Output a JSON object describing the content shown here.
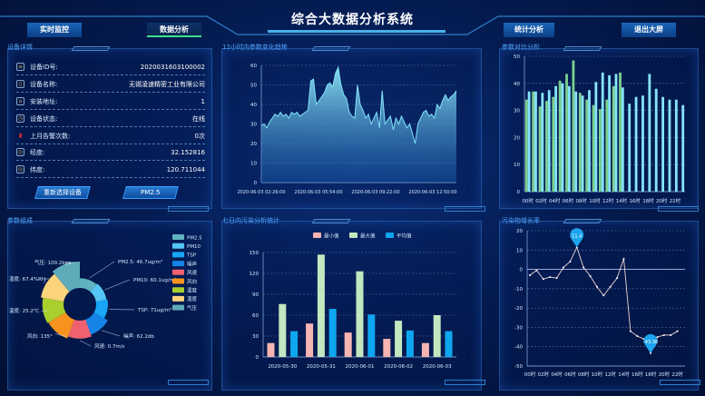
{
  "header": {
    "title": "综合大数据分析系统",
    "nav": [
      {
        "label": "实时监控"
      },
      {
        "label": "数据分析",
        "active": true
      },
      {
        "label": "统计分析"
      },
      {
        "label": "退出大屏"
      }
    ]
  },
  "device": {
    "title": "设备详情",
    "rows": [
      {
        "icon": "id-card-icon",
        "label": "设备ID号:",
        "value": "2020031603100002"
      },
      {
        "icon": "document-icon",
        "label": "设备名称:",
        "value": "无锡凌速精密工业有限公司"
      },
      {
        "icon": "home-icon",
        "label": "安装地址:",
        "value": "1"
      },
      {
        "icon": "clock-icon",
        "label": "设备状态:",
        "value": "在线"
      },
      {
        "icon": "alarm-icon",
        "label": "上月告警次数:",
        "value": "0次"
      },
      {
        "icon": "globe-icon",
        "label": "经度:",
        "value": "32.152816"
      },
      {
        "icon": "globe-icon",
        "label": "纬度:",
        "value": "120.711044"
      }
    ],
    "reselect_label": "重新选择设备",
    "param_label": "PM2.5"
  },
  "panels": {
    "trend": "12小时内参数变化趋势",
    "compare": "参数对比分析",
    "composition": "参数组成",
    "weekly": "七日内污染分析统计",
    "growth": "污染物增长率"
  },
  "chart_data": [
    {
      "id": "trend",
      "type": "area",
      "title": "12小时内参数变化趋势",
      "ylim": [
        0,
        60
      ],
      "yticks": [
        0,
        10,
        20,
        30,
        40,
        50,
        60
      ],
      "grid": true,
      "xtick_labels": [
        "2020-06-03 02:26:00",
        "2020-06-03 05:54:00",
        "2020-06-03 09:22:00",
        "2020-06-03 12:50:00"
      ],
      "x_interval_minutes": 10,
      "values": [
        29,
        30,
        28,
        31,
        33,
        35,
        34,
        36,
        34,
        35,
        33,
        36,
        35,
        36,
        34,
        35,
        36,
        37,
        52,
        53,
        40,
        42,
        44,
        46,
        50,
        51,
        49,
        56,
        59,
        50,
        45,
        43,
        36,
        34,
        33,
        50,
        40,
        37,
        33,
        35,
        30,
        33,
        36,
        28,
        47,
        30,
        32,
        34,
        27,
        33,
        30,
        34,
        31,
        28,
        30,
        25,
        20,
        30,
        33,
        36,
        37,
        34,
        35,
        33,
        40,
        38,
        42,
        45,
        42,
        44,
        45,
        47
      ],
      "color": "#7fe3f7"
    },
    {
      "id": "compare",
      "type": "bar",
      "title": "参数对比分析",
      "ylim": [
        0,
        50
      ],
      "yticks": [
        0,
        10,
        20,
        30,
        40,
        50
      ],
      "grid": true,
      "categories": [
        "00时",
        "01时",
        "02时",
        "03时",
        "04时",
        "05时",
        "06时",
        "07时",
        "08时",
        "09时",
        "10时",
        "11时",
        "12时",
        "13时",
        "14时",
        "15时",
        "16时",
        "17时",
        "18时",
        "19时",
        "20时",
        "21时",
        "22时",
        "23时"
      ],
      "series": [
        {
          "values": [
            34,
            37,
            31.5,
            33.5,
            35,
            41,
            43.5,
            48.5,
            36.5,
            34,
            32,
            30.5,
            34,
            39,
            44,
            null,
            null,
            null,
            null,
            null,
            null,
            null,
            null,
            null
          ],
          "color": "#7ccf8e"
        },
        {
          "values": [
            37,
            37,
            36.5,
            37.5,
            39,
            40,
            39,
            37,
            35.5,
            37.5,
            40.5,
            44,
            43,
            43.5,
            38.5,
            32.5,
            35,
            35.5,
            43.5,
            38,
            35,
            34,
            34,
            32
          ],
          "color": "#86e4fa"
        }
      ]
    },
    {
      "id": "composition",
      "type": "pie",
      "rose": true,
      "title": "参数组成",
      "slices": [
        {
          "name": "PM2.5",
          "label": "PM2.5: 46.7ug/m³",
          "color": "#5fb3c1",
          "rel": 0.2
        },
        {
          "name": "PM10",
          "label": "PM10: 60.1ug/m³",
          "color": "#54c6f5",
          "rel": 0.25
        },
        {
          "name": "TSP",
          "label": "TSP: 71ug/m³",
          "color": "#19a6f5",
          "rel": 0.3
        },
        {
          "name": "噪声",
          "label": "噪声: 62.2db",
          "color": "#1683e6",
          "rel": 0.5
        },
        {
          "name": "风速",
          "label": "风速: 0.7m/s",
          "color": "#ef6170",
          "rel": 0.6
        },
        {
          "name": "风向",
          "label": "风向: 135°",
          "color": "#f7921e",
          "rel": 0.7
        },
        {
          "name": "温度",
          "label": "温度: 25.2℃",
          "color": "#a8cf2c",
          "rel": 0.75
        },
        {
          "name": "湿度",
          "label": "湿度: 67.4%RH",
          "color": "#fbd37a",
          "rel": 0.85
        },
        {
          "name": "气压",
          "label": "气压: 100.2kpa",
          "color": "#5eabb9",
          "rel": 1.0
        }
      ]
    },
    {
      "id": "weekly",
      "type": "bar",
      "title": "七日内污染分析统计",
      "ylim": [
        0,
        150
      ],
      "yticks": [
        0,
        30,
        60,
        90,
        120,
        150
      ],
      "grid": true,
      "legend": "top",
      "categories": [
        "2020-05-30",
        "2020-05-31",
        "2020-06-01",
        "2020-06-02",
        "2020-06-03"
      ],
      "series": [
        {
          "name": "最小值",
          "values": [
            20,
            48,
            35,
            26,
            20
          ],
          "color": "#f6b4b2"
        },
        {
          "name": "最大值",
          "values": [
            76,
            147,
            123,
            52,
            60
          ],
          "color": "#c3e7c0"
        },
        {
          "name": "平均值",
          "values": [
            37,
            69,
            61,
            38,
            37
          ],
          "color": "#0ea6f0"
        }
      ]
    },
    {
      "id": "growth",
      "type": "line",
      "title": "污染物增长率",
      "ylim": [
        -50,
        20
      ],
      "yticks": [
        -50,
        -40,
        -30,
        -20,
        -10,
        0,
        10,
        20
      ],
      "grid": true,
      "categories": [
        "00时",
        "01时",
        "02时",
        "03时",
        "04时",
        "05时",
        "06时",
        "07时",
        "08时",
        "09时",
        "10时",
        "11时",
        "12时",
        "13时",
        "14时",
        "15时",
        "16时",
        "17时",
        "18时",
        "19时",
        "20时",
        "21时",
        "22时",
        "23时"
      ],
      "values": [
        -3,
        -0.5,
        -5,
        -4,
        -4.5,
        1,
        4,
        11.4,
        1,
        -3.5,
        -9,
        -13.5,
        -9,
        -4.5,
        5.5,
        -32,
        -34.5,
        -36,
        -43.38,
        -35,
        -34,
        -34,
        -32,
        null
      ],
      "max_label": "11.4",
      "min_label": "-43.38",
      "color": "#f2d6d6",
      "marker_color": "#1ea4ef"
    }
  ]
}
